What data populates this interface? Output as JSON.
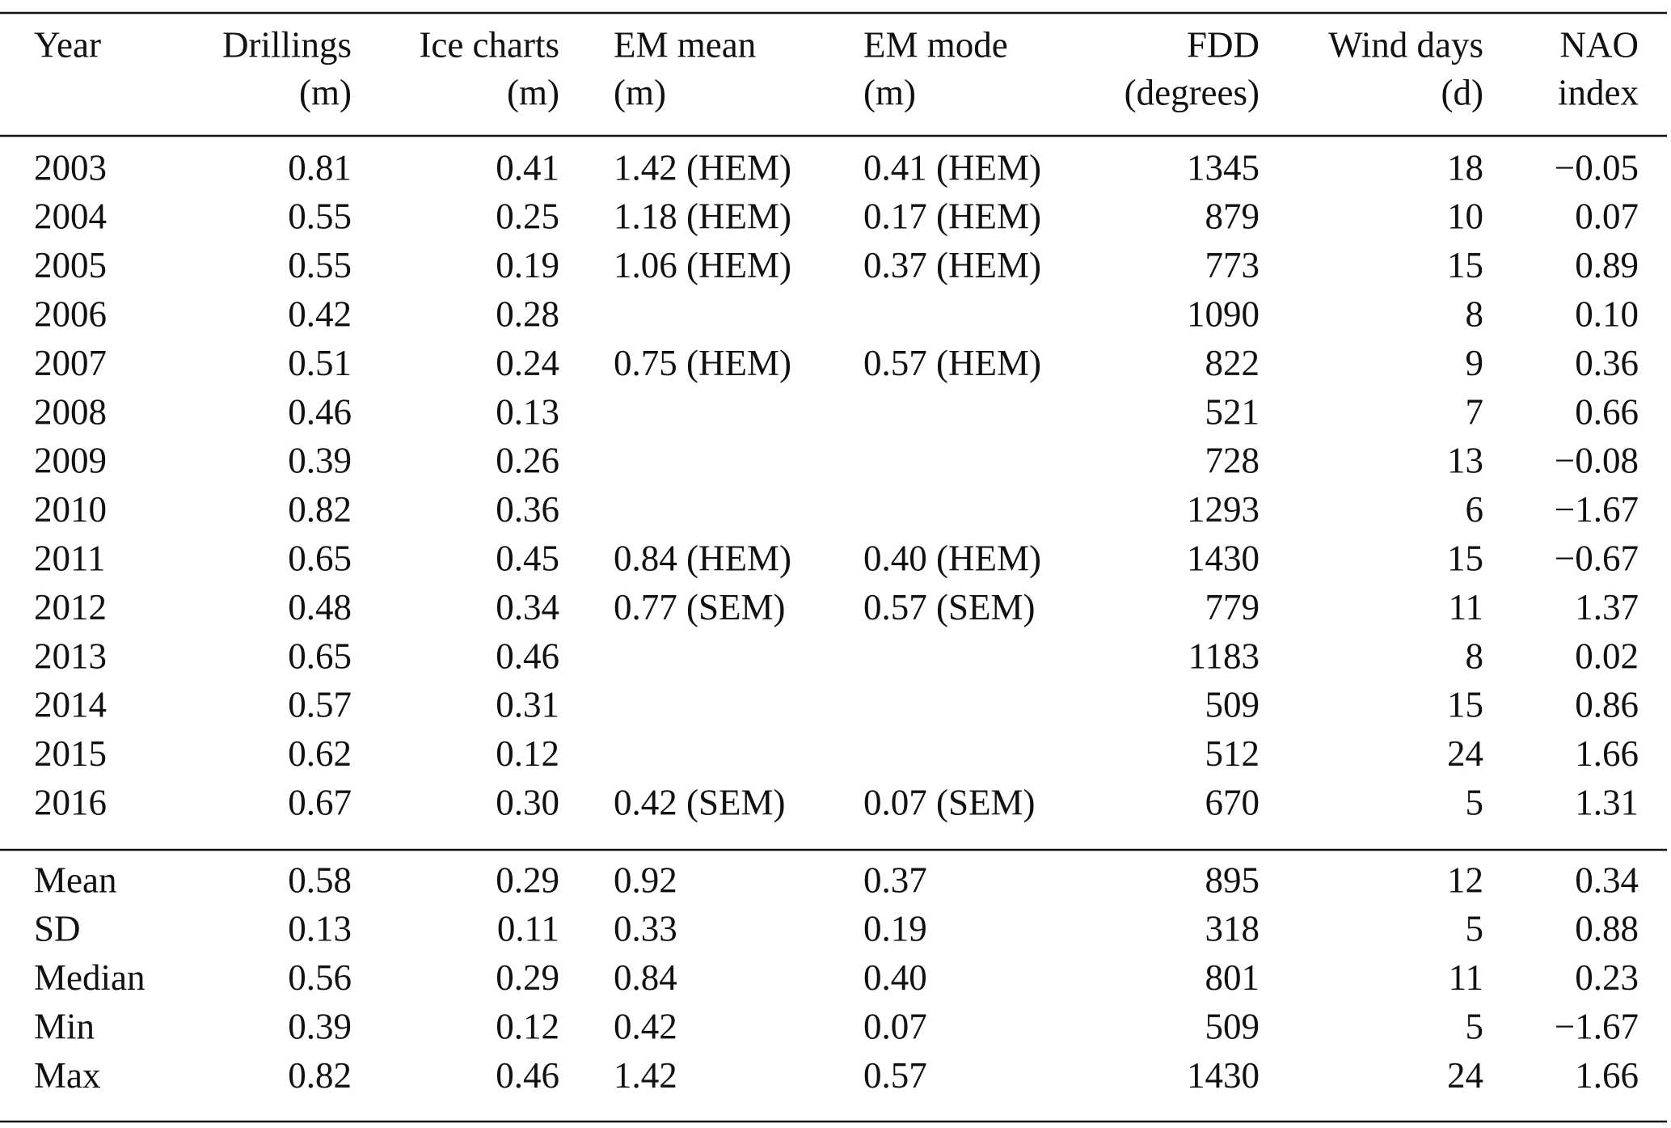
{
  "table": {
    "header": [
      [
        "Year"
      ],
      [
        "Drillings",
        "(m)"
      ],
      [
        "Ice charts",
        "(m)"
      ],
      [
        "EM mean",
        "(m)"
      ],
      [
        "EM mode",
        "(m)"
      ],
      [
        "FDD",
        "(degrees)"
      ],
      [
        "Wind days",
        "(d)"
      ],
      [
        "NAO",
        "index"
      ]
    ],
    "rows": [
      [
        "2003",
        "0.81",
        "0.41",
        "1.42 (HEM)",
        "0.41 (HEM)",
        "1345",
        "18",
        "−0.05"
      ],
      [
        "2004",
        "0.55",
        "0.25",
        "1.18 (HEM)",
        "0.17 (HEM)",
        "879",
        "10",
        "0.07"
      ],
      [
        "2005",
        "0.55",
        "0.19",
        "1.06 (HEM)",
        "0.37 (HEM)",
        "773",
        "15",
        "0.89"
      ],
      [
        "2006",
        "0.42",
        "0.28",
        null,
        null,
        "1090",
        "8",
        "0.10"
      ],
      [
        "2007",
        "0.51",
        "0.24",
        "0.75 (HEM)",
        "0.57 (HEM)",
        "822",
        "9",
        "0.36"
      ],
      [
        "2008",
        "0.46",
        "0.13",
        null,
        null,
        "521",
        "7",
        "0.66"
      ],
      [
        "2009",
        "0.39",
        "0.26",
        null,
        null,
        "728",
        "13",
        "−0.08"
      ],
      [
        "2010",
        "0.82",
        "0.36",
        null,
        null,
        "1293",
        "6",
        "−1.67"
      ],
      [
        "2011",
        "0.65",
        "0.45",
        "0.84 (HEM)",
        "0.40 (HEM)",
        "1430",
        "15",
        "−0.67"
      ],
      [
        "2012",
        "0.48",
        "0.34",
        "0.77 (SEM)",
        "0.57 (SEM)",
        "779",
        "11",
        "1.37"
      ],
      [
        "2013",
        "0.65",
        "0.46",
        null,
        null,
        "1183",
        "8",
        "0.02"
      ],
      [
        "2014",
        "0.57",
        "0.31",
        null,
        null,
        "509",
        "15",
        "0.86"
      ],
      [
        "2015",
        "0.62",
        "0.12",
        null,
        null,
        "512",
        "24",
        "1.66"
      ],
      [
        "2016",
        "0.67",
        "0.30",
        "0.42 (SEM)",
        "0.07 (SEM)",
        "670",
        "5",
        "1.31"
      ]
    ],
    "stats": [
      [
        "Mean",
        "0.58",
        "0.29",
        "0.92",
        "0.37",
        "895",
        "12",
        "0.34"
      ],
      [
        "SD",
        "0.13",
        "0.11",
        "0.33",
        "0.19",
        "318",
        "5",
        "0.88"
      ],
      [
        "Median",
        "0.56",
        "0.29",
        "0.84",
        "0.40",
        "801",
        "11",
        "0.23"
      ],
      [
        "Min",
        "0.39",
        "0.12",
        "0.42",
        "0.07",
        "509",
        "5",
        "−1.67"
      ],
      [
        "Max",
        "0.82",
        "0.46",
        "1.42",
        "0.57",
        "1430",
        "24",
        "1.66"
      ]
    ]
  }
}
